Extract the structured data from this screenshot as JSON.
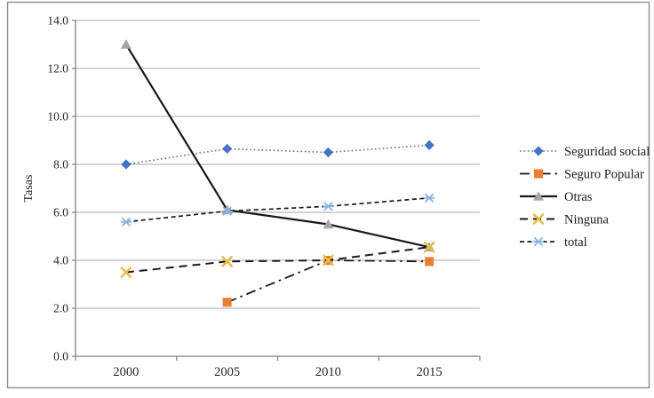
{
  "figure": {
    "background": "#ffffff",
    "border_color": "#8f8f8f"
  },
  "chart_data": {
    "type": "line",
    "title": "",
    "xlabel": "",
    "ylabel": "Tasas",
    "x_categories": [
      "2000",
      "2005",
      "2010",
      "2015"
    ],
    "ylim": [
      0,
      14
    ],
    "ytick_step": 2,
    "ytick_labels": [
      "0.0",
      "2.0",
      "4.0",
      "6.0",
      "8.0",
      "10.0",
      "12.0",
      "14.0"
    ],
    "grid": true,
    "legend_position": "right",
    "series": [
      {
        "name": "Seguridad social",
        "values": [
          8.0,
          8.65,
          8.5,
          8.8
        ],
        "marker": "diamond",
        "marker_color": "#4472c4",
        "line_color": "#6e6e6e",
        "line_style": "dotted"
      },
      {
        "name": "Seguro Popular",
        "values": [
          null,
          2.25,
          4.0,
          3.95
        ],
        "marker": "square",
        "marker_color": "#ed7d31",
        "line_color": "#1a1a1a",
        "line_style": "dashdot"
      },
      {
        "name": "Otras",
        "values": [
          13.0,
          6.1,
          5.5,
          4.55
        ],
        "marker": "triangle",
        "marker_color": "#a6a6a6",
        "line_color": "#1a1a1a",
        "line_style": "solid"
      },
      {
        "name": "Ninguna",
        "values": [
          3.5,
          3.95,
          4.0,
          4.55
        ],
        "marker": "x",
        "marker_color": "#e3bf4a",
        "line_color": "#1a1a1a",
        "line_style": "dashed"
      },
      {
        "name": "total",
        "values": [
          5.6,
          6.05,
          6.25,
          6.6
        ],
        "marker": "star",
        "marker_color": "#8db3e2",
        "line_color": "#1a1a1a",
        "line_style": "dashed-short"
      }
    ],
    "axis_color": "#7f7f7f",
    "gridline_color": "#a9a9a9",
    "tick_text_color": "#262626",
    "legend_text_color": "#1a1a1a"
  }
}
